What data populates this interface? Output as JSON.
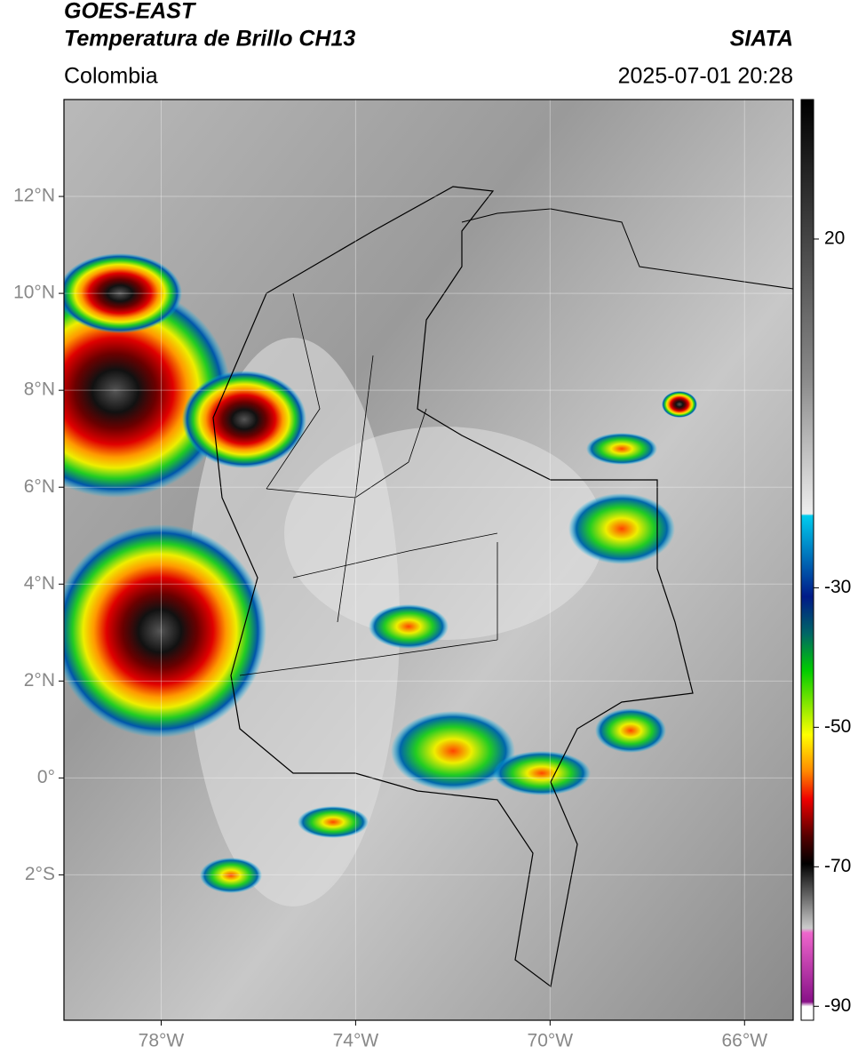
{
  "header": {
    "title": "GOES-EAST",
    "subtitle": "Temperatura de Brillo CH13",
    "region": "Colombia",
    "source": "SIATA",
    "datetime": "2025-07-01 20:28"
  },
  "map": {
    "lonlim": [
      -80,
      -65
    ],
    "latlim": [
      -5,
      14
    ],
    "lat_ticks": [
      {
        "value": 12,
        "label": "12°N"
      },
      {
        "value": 10,
        "label": "10°N"
      },
      {
        "value": 8,
        "label": "8°N"
      },
      {
        "value": 6,
        "label": "6°N"
      },
      {
        "value": 4,
        "label": "4°N"
      },
      {
        "value": 2,
        "label": "2°N"
      },
      {
        "value": 0,
        "label": "0°"
      },
      {
        "value": -2,
        "label": "2°S"
      }
    ],
    "lon_ticks": [
      {
        "value": -78,
        "label": "78°W"
      },
      {
        "value": -74,
        "label": "74°W"
      },
      {
        "value": -70,
        "label": "70°W"
      },
      {
        "value": -66,
        "label": "66°W"
      }
    ]
  },
  "colorbar": {
    "lim": [
      -92,
      40
    ],
    "ticks": [
      20,
      -30,
      -50,
      -70,
      -90
    ]
  }
}
